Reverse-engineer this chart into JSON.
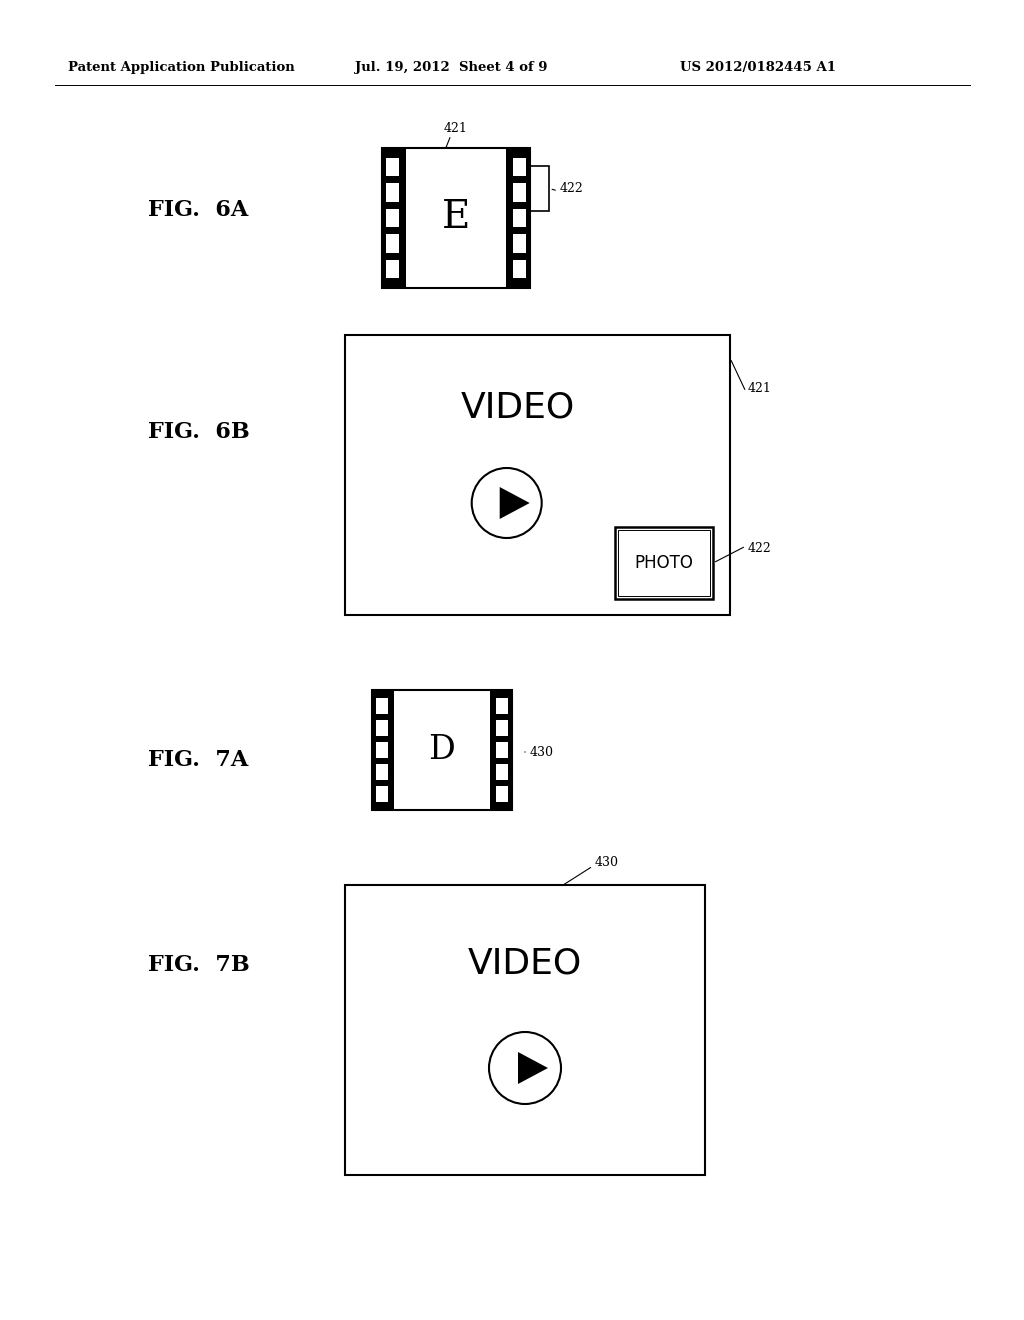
{
  "bg_color": "#ffffff",
  "header_left": "Patent Application Publication",
  "header_mid": "Jul. 19, 2012  Sheet 4 of 9",
  "header_right": "US 2012/0182445 A1",
  "fig6a_label": "FIG.  6A",
  "fig6b_label": "FIG.  6B",
  "fig7a_label": "FIG.  7A",
  "fig7b_label": "FIG.  7B",
  "label_421_6a": "421",
  "label_422_6a": "422",
  "label_421_6b": "421",
  "label_422_6b": "422",
  "label_430_7a": "430",
  "label_430_7b": "430"
}
